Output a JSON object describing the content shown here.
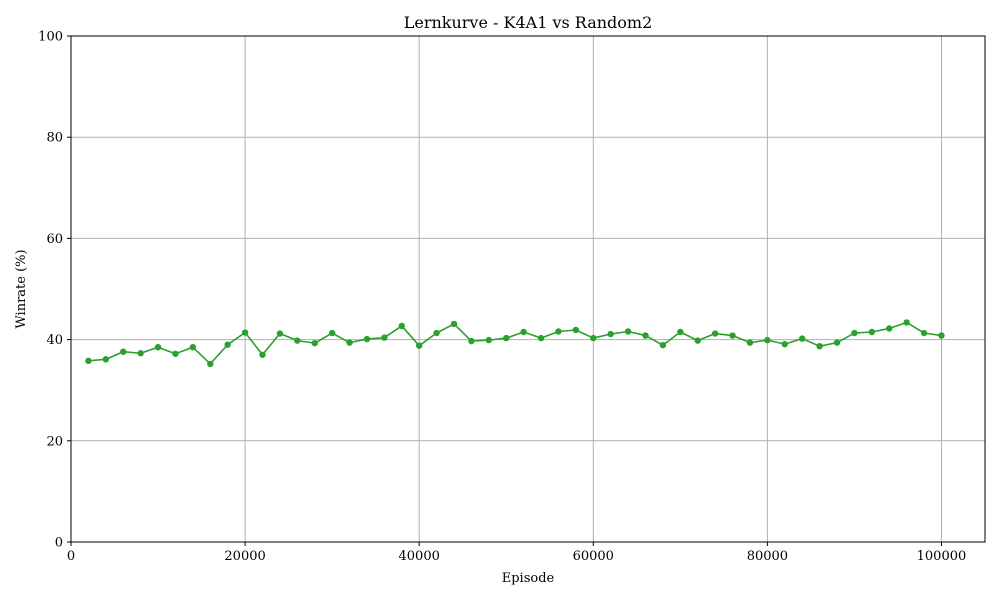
{
  "chart_data": {
    "type": "line",
    "title": "Lernkurve - K4A1 vs Random2",
    "xlabel": "Episode",
    "ylabel": "Winrate (%)",
    "xlim": [
      0,
      105000
    ],
    "ylim": [
      0,
      100
    ],
    "x_ticks": [
      0,
      20000,
      40000,
      60000,
      80000,
      100000
    ],
    "y_ticks": [
      0,
      20,
      40,
      60,
      80,
      100
    ],
    "grid": true,
    "color": "#2ca02c",
    "x": [
      2000,
      4000,
      6000,
      8000,
      10000,
      12000,
      14000,
      16000,
      18000,
      20000,
      22000,
      24000,
      26000,
      28000,
      30000,
      32000,
      34000,
      36000,
      38000,
      40000,
      42000,
      44000,
      46000,
      48000,
      50000,
      52000,
      54000,
      56000,
      58000,
      60000,
      62000,
      64000,
      66000,
      68000,
      70000,
      72000,
      74000,
      76000,
      78000,
      80000,
      82000,
      84000,
      86000,
      88000,
      90000,
      92000,
      94000,
      96000,
      98000,
      100000
    ],
    "values": [
      35.8,
      36.1,
      37.6,
      37.3,
      38.5,
      37.2,
      38.5,
      35.2,
      39.0,
      41.4,
      37.0,
      41.2,
      39.8,
      39.3,
      41.3,
      39.4,
      40.1,
      40.4,
      42.7,
      38.8,
      41.3,
      43.1,
      39.7,
      39.9,
      40.3,
      41.5,
      40.3,
      41.6,
      41.9,
      40.3,
      41.1,
      41.6,
      40.8,
      38.9,
      41.5,
      39.8,
      41.2,
      40.8,
      39.4,
      39.9,
      39.1,
      40.2,
      38.7,
      39.4,
      41.3,
      41.5,
      42.2,
      43.4,
      41.3,
      40.8
    ]
  }
}
